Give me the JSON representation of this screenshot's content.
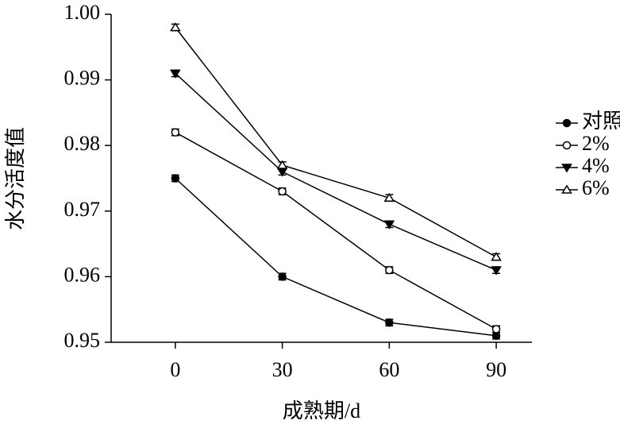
{
  "chart_data": {
    "type": "line",
    "x_label": "成熟期/d",
    "y_label": "水分活度值",
    "x": [
      0,
      30,
      60,
      90
    ],
    "series": [
      {
        "name": "对照",
        "color": "#000000",
        "marker": "circle",
        "filled": true,
        "values": [
          0.975,
          0.96,
          0.953,
          0.951
        ],
        "errors": [
          0.0005,
          0.0005,
          0.0005,
          0.0005
        ]
      },
      {
        "name": "2%",
        "color": "#000000",
        "marker": "circle",
        "filled": false,
        "values": [
          0.982,
          0.973,
          0.961,
          0.952
        ],
        "errors": [
          0.0005,
          0.0005,
          0.0005,
          0.0005
        ]
      },
      {
        "name": "4%",
        "color": "#000000",
        "marker": "triangle-down",
        "filled": true,
        "values": [
          0.991,
          0.976,
          0.968,
          0.961
        ],
        "errors": [
          0.0005,
          0.0005,
          0.0005,
          0.0005
        ]
      },
      {
        "name": "6%",
        "color": "#000000",
        "marker": "triangle-up",
        "filled": false,
        "values": [
          0.998,
          0.977,
          0.972,
          0.963
        ],
        "errors": [
          0.0005,
          0.0005,
          0.0005,
          0.0005
        ]
      }
    ],
    "xlim": [
      -18,
      100
    ],
    "xticks": [
      0,
      30,
      60,
      90
    ],
    "ylim": [
      0.95,
      1.0
    ],
    "yticks": [
      0.95,
      0.96,
      0.97,
      0.98,
      0.99,
      {
        "value": 1.0,
        "label": "1.00"
      }
    ],
    "grid": false,
    "legend": "right"
  }
}
